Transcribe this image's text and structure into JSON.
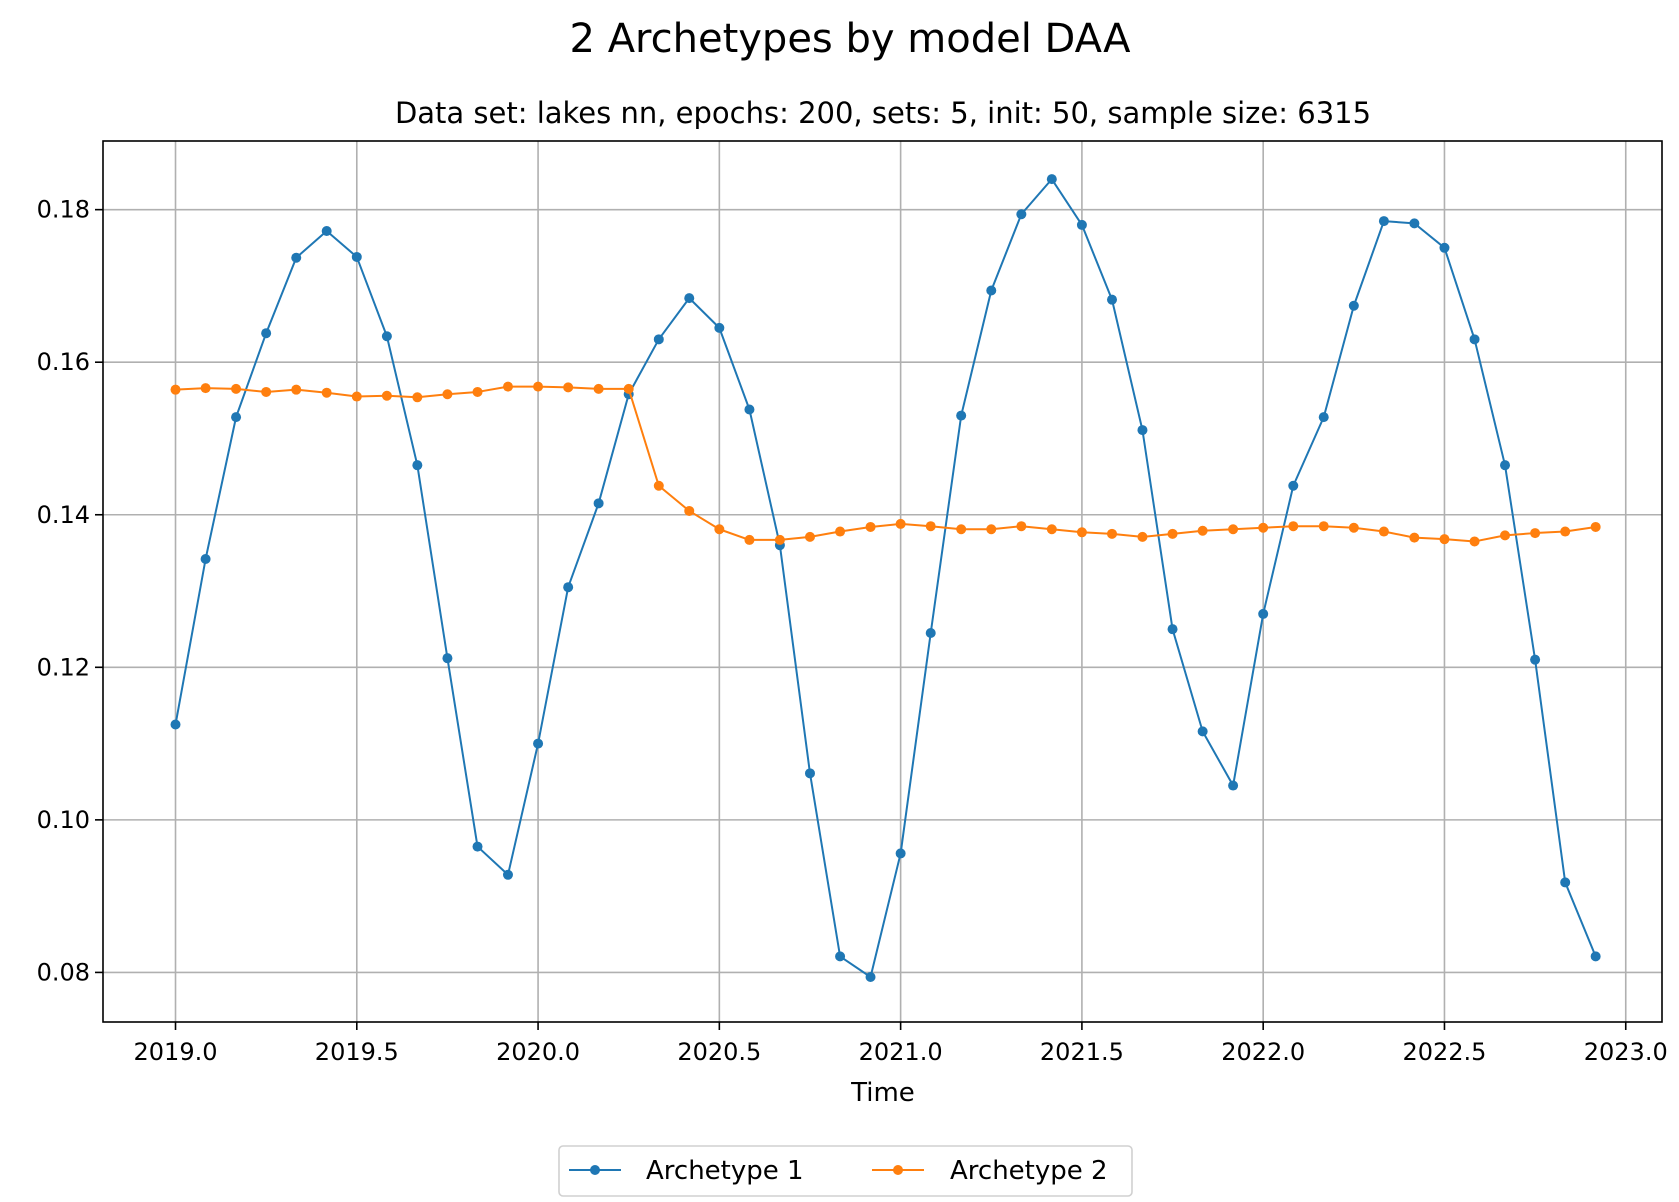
{
  "chart_data": {
    "type": "line",
    "title": "2 Archetypes by model DAA",
    "subtitle": "Data set: lakes nn, epochs: 200, sets: 5, init: 50, sample size: 6315",
    "xlabel": "Time",
    "ylabel": "",
    "xlim": [
      2018.8,
      2023.1
    ],
    "ylim": [
      0.0735,
      0.189
    ],
    "xticks": [
      2019.0,
      2019.5,
      2020.0,
      2020.5,
      2021.0,
      2021.5,
      2022.0,
      2022.5,
      2023.0
    ],
    "xtick_labels": [
      "2019.0",
      "2019.5",
      "2020.0",
      "2020.5",
      "2021.0",
      "2021.5",
      "2022.0",
      "2022.5",
      "2023.0"
    ],
    "yticks": [
      0.08,
      0.1,
      0.12,
      0.14,
      0.16,
      0.18
    ],
    "ytick_labels": [
      "0.08",
      "0.10",
      "0.12",
      "0.14",
      "0.16",
      "0.18"
    ],
    "grid": true,
    "legend_placement": "bottom-center",
    "x": [
      2019.0,
      2019.083,
      2019.167,
      2019.25,
      2019.333,
      2019.417,
      2019.5,
      2019.583,
      2019.667,
      2019.75,
      2019.833,
      2019.917,
      2020.0,
      2020.083,
      2020.167,
      2020.25,
      2020.333,
      2020.417,
      2020.5,
      2020.583,
      2020.667,
      2020.75,
      2020.833,
      2020.917,
      2021.0,
      2021.083,
      2021.167,
      2021.25,
      2021.333,
      2021.417,
      2021.5,
      2021.583,
      2021.667,
      2021.75,
      2021.833,
      2021.917,
      2022.0,
      2022.083,
      2022.167,
      2022.25,
      2022.333,
      2022.417,
      2022.5,
      2022.583,
      2022.667,
      2022.75,
      2022.833,
      2022.917
    ],
    "series": [
      {
        "name": "Archetype 1",
        "color": "#1f77b4",
        "values": [
          0.1125,
          0.1342,
          0.1528,
          0.1638,
          0.1737,
          0.1772,
          0.1738,
          0.1634,
          0.1465,
          0.1212,
          0.0965,
          0.0928,
          0.11,
          0.1305,
          0.1415,
          0.1558,
          0.163,
          0.1684,
          0.1645,
          0.1538,
          0.136,
          0.1061,
          0.0821,
          0.0794,
          0.0956,
          0.1245,
          0.153,
          0.1694,
          0.1794,
          0.184,
          0.178,
          0.1682,
          0.1511,
          0.125,
          0.1116,
          0.1045,
          0.127,
          0.1438,
          0.1528,
          0.1674,
          0.1785,
          0.1782,
          0.175,
          0.163,
          0.1465,
          0.121,
          0.0918,
          0.0821
        ]
      },
      {
        "name": "Archetype 2",
        "color": "#ff7f0e",
        "values": [
          0.1564,
          0.1566,
          0.1565,
          0.1561,
          0.1564,
          0.156,
          0.1555,
          0.1556,
          0.1554,
          0.1558,
          0.1561,
          0.1568,
          0.1568,
          0.1567,
          0.1565,
          0.1565,
          0.1438,
          0.1405,
          0.1381,
          0.1367,
          0.1367,
          0.1371,
          0.1378,
          0.1384,
          0.1388,
          0.1385,
          0.1381,
          0.1381,
          0.1385,
          0.1381,
          0.1377,
          0.1375,
          0.1371,
          0.1375,
          0.1379,
          0.1381,
          0.1383,
          0.1385,
          0.1385,
          0.1383,
          0.1378,
          0.137,
          0.1368,
          0.1365,
          0.1373,
          0.1376,
          0.1378,
          0.1384
        ]
      }
    ]
  }
}
